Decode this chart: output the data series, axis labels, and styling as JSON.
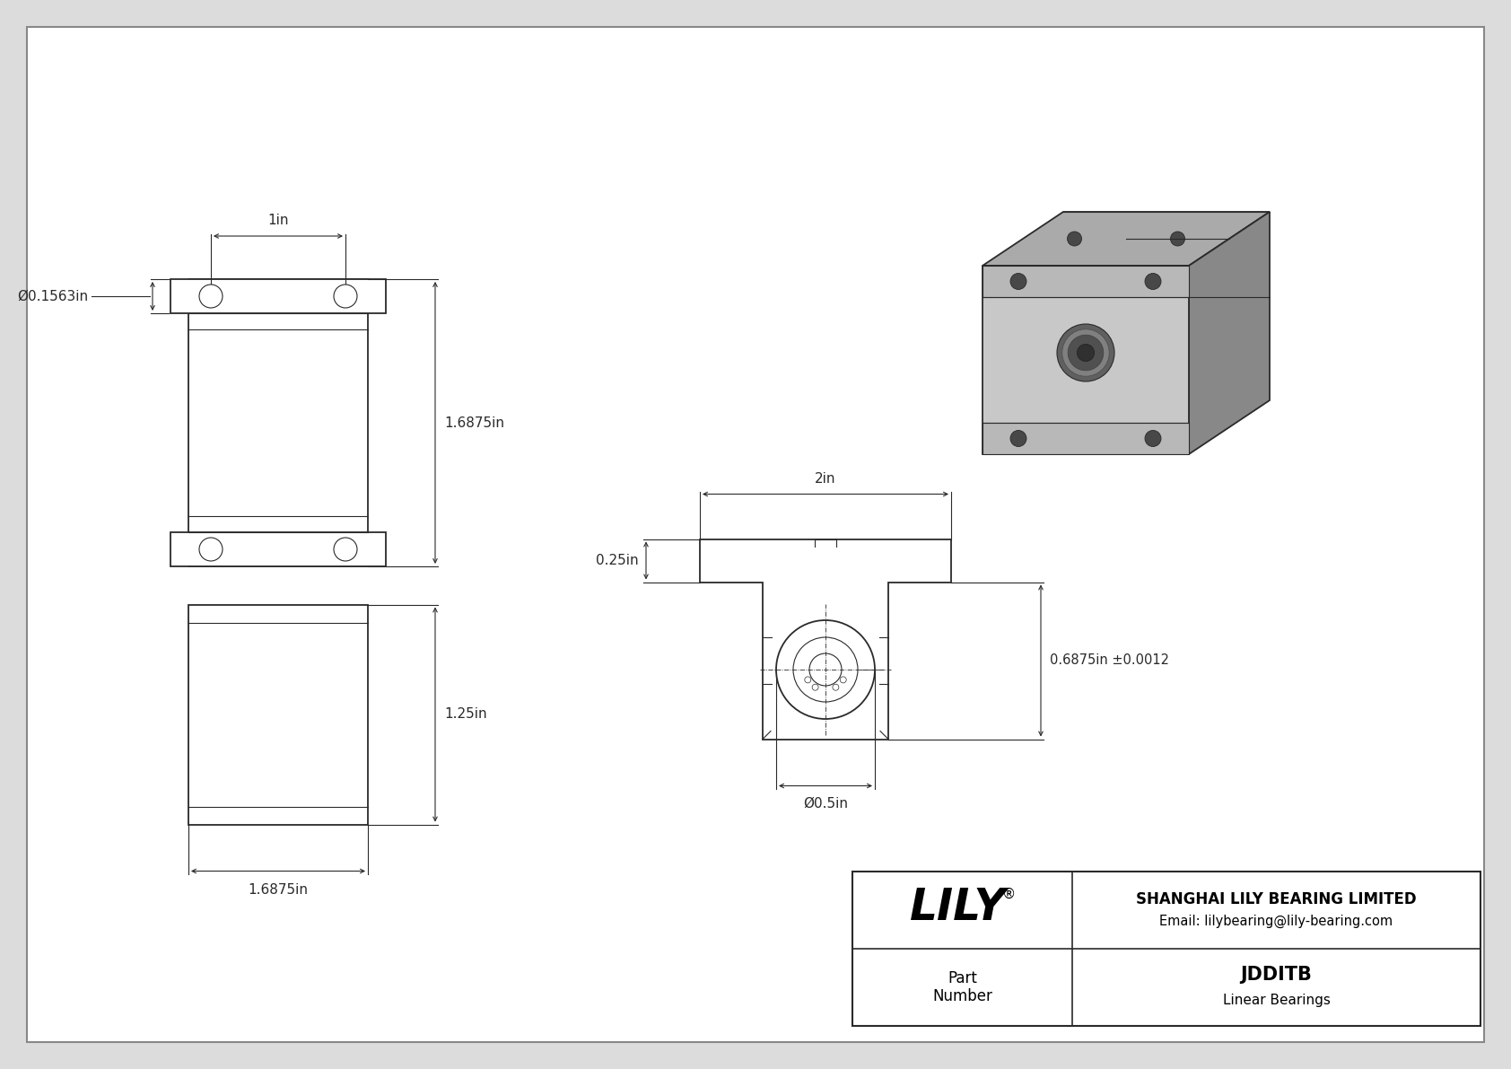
{
  "bg_color": "#dcdcdc",
  "line_color": "#2a2a2a",
  "title_company": "SHANGHAI LILY BEARING LIMITED",
  "title_email": "Email: lilybearing@lily-bearing.com",
  "part_label": "Part\nNumber",
  "part_number": "JDDITB",
  "part_type": "Linear Bearings",
  "dim_front_width": "1in",
  "dim_front_height": "1.6875in",
  "dim_front_hole_dia": "Ø0.1563in",
  "dim_side_height": "1.25in",
  "dim_side_width": "1.6875in",
  "dim_cross_left": "0.25in",
  "dim_cross_width": "2in",
  "dim_cross_right": "0.6875in ±0.0012",
  "dim_cross_bore": "Ø0.5in",
  "lw_main": 1.3,
  "lw_thin": 0.8,
  "lw_dim": 0.8,
  "face_front": "#c8c8c8",
  "face_top": "#aaaaaa",
  "face_right": "#888888"
}
